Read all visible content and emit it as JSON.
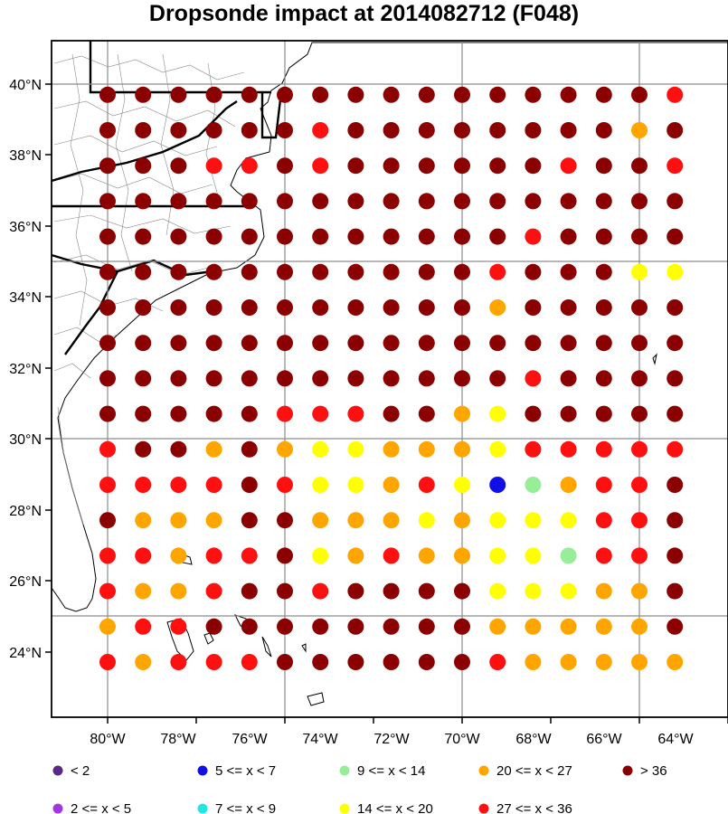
{
  "title": "Dropsonde impact at 2014082712 (F048)",
  "lon_ticks": [
    "80°W",
    "78°W",
    "76°W",
    "74°W",
    "72°W",
    "70°W",
    "68°W",
    "66°W",
    "64°W"
  ],
  "lat_ticks": [
    "40°N",
    "38°N",
    "36°N",
    "34°N",
    "32°N",
    "30°N",
    "28°N",
    "26°N",
    "24°N"
  ],
  "legend": [
    {
      "label": "<  2",
      "color": "#5b2a86",
      "class": 0
    },
    {
      "label": "2 <= x <  5",
      "color": "#a237e0",
      "class": 1
    },
    {
      "label": "5 <= x <  7",
      "color": "#1010e6",
      "class": 2
    },
    {
      "label": "7 <= x <  9",
      "color": "#20e6e6",
      "class": 3
    },
    {
      "label": "9 <= x < 14",
      "color": "#98ee98",
      "class": 4
    },
    {
      "label": "14 <= x < 20",
      "color": "#ffff00",
      "class": 5
    },
    {
      "label": "20 <= x < 27",
      "color": "#ffa500",
      "class": 6
    },
    {
      "label": "27 <= x < 36",
      "color": "#ff1010",
      "class": 7
    },
    {
      "label": "> 36",
      "color": "#8b0000",
      "class": 8
    }
  ],
  "grid": {
    "lons": [
      -80,
      -79,
      -78,
      -77,
      -76,
      -75,
      -74,
      -73,
      -72,
      -71,
      -70,
      -69,
      -68,
      -67,
      -66,
      -65,
      -64
    ],
    "lats": [
      39.7,
      38.7,
      37.7,
      36.7,
      35.7,
      34.7,
      33.7,
      32.7,
      31.7,
      30.7,
      29.7,
      28.7,
      27.7,
      26.7,
      25.7,
      24.7,
      23.7
    ],
    "classes": [
      "88888888888888887",
      "88888878888888868",
      "88877878888887887",
      "88888888888888888",
      "88888888888878888",
      "88888888888788855",
      "88888888888688888",
      "88888888888888888",
      "88888888888878888",
      "88888777886588888",
      "78868655666577777",
      "77778755675246778",
      "86668866656555778",
      "77677856766554778",
      "76678878888555668",
      "67788888888666668",
      "76777888888766666"
    ]
  }
}
